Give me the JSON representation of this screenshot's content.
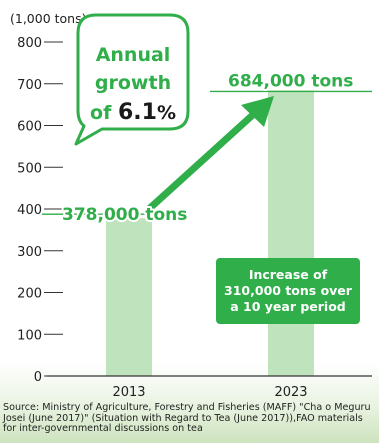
{
  "unit_label": "(1,000 tons)",
  "chart_data": {
    "type": "bar",
    "categories": [
      "2013",
      "2023"
    ],
    "values": [
      378,
      684
    ],
    "ylim": [
      0,
      800
    ],
    "yticks": [
      0,
      100,
      200,
      300,
      400,
      500,
      600,
      700,
      800
    ],
    "ylabel": "(1,000 tons)",
    "grid": false,
    "data_labels": [
      "378,000 tons",
      "684,000 tons"
    ],
    "annotations": {
      "growth_bubble": {
        "line1": "Annual",
        "line2": "growth",
        "line3_prefix": "of ",
        "line3_value": "6.1",
        "line3_suffix": "%"
      },
      "increase_box": "Increase of\n310,000 tons over\na 10 year period"
    }
  },
  "colors": {
    "bar": "#bfe3bd",
    "accent_green": "#2fae4a",
    "axis": "#333333",
    "text": "#222222"
  },
  "source_text": "Source: Ministry of Agriculture, Forestry and Fisheries (MAFF) \"Cha o Meguru Josei (June 2017)\" (Situation with Regard to Tea (June 2017)),FAO materials for inter-governmental discussions on tea"
}
